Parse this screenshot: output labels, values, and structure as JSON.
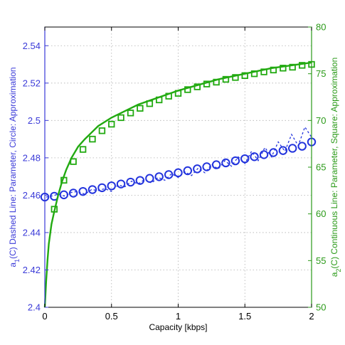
{
  "chart_data": {
    "type": "line",
    "xlabel": "Capacity [kbps]",
    "ylabel_left_parts": [
      "a",
      "1",
      "(C) Dashed Line: Parameter, Circle: Approximation"
    ],
    "ylabel_right_parts": [
      "a",
      "2",
      "(C) Continuous Line: Parameter, Square: Approximation"
    ],
    "xlim": [
      0,
      2
    ],
    "ylim_left": [
      2.4,
      2.55
    ],
    "ylim_right": [
      50,
      80
    ],
    "x_ticks": [
      "0",
      "0.5",
      "1",
      "1.5",
      "2"
    ],
    "y_left_ticks": [
      "2.4",
      "2.42",
      "2.44",
      "2.46",
      "2.48",
      "2.5",
      "2.52",
      "2.54"
    ],
    "y_right_ticks": [
      "50",
      "55",
      "60",
      "65",
      "70",
      "75",
      "80"
    ],
    "grid": true,
    "colors": {
      "left": "#2233dd",
      "right": "#22aa11",
      "axis_left": "#3a3ad8",
      "axis_right": "#2a9a18"
    },
    "series": [
      {
        "axis": "left",
        "style": "dashed",
        "x": [
          0.01,
          0.05,
          0.1,
          0.15,
          0.2,
          0.25,
          0.3,
          0.35,
          0.4,
          0.45,
          0.5,
          0.55,
          0.6,
          0.65,
          0.7,
          0.75,
          0.8,
          0.85,
          0.9,
          0.95,
          1.0,
          1.05,
          1.1,
          1.15,
          1.2,
          1.25,
          1.3,
          1.35,
          1.4,
          1.45,
          1.5,
          1.55,
          1.6,
          1.65,
          1.7,
          1.75,
          1.8,
          1.85,
          1.9,
          1.95,
          2.0
        ],
        "y": [
          2.459,
          2.4595,
          2.4605,
          2.4595,
          2.4615,
          2.462,
          2.4605,
          2.463,
          2.4625,
          2.4635,
          2.462,
          2.4655,
          2.4645,
          2.4675,
          2.466,
          2.4685,
          2.4665,
          2.4695,
          2.468,
          2.4715,
          2.4695,
          2.4725,
          2.4705,
          2.4745,
          2.472,
          2.4765,
          2.474,
          2.4785,
          2.4755,
          2.4805,
          2.477,
          2.4835,
          2.4785,
          2.4855,
          2.4805,
          2.4885,
          2.4835,
          2.4925,
          2.4865,
          2.4965,
          2.491
        ]
      },
      {
        "axis": "left",
        "style": "circle",
        "x": [
          0.0,
          0.071,
          0.143,
          0.214,
          0.286,
          0.357,
          0.429,
          0.5,
          0.571,
          0.643,
          0.714,
          0.786,
          0.857,
          0.929,
          1.0,
          1.071,
          1.143,
          1.214,
          1.286,
          1.357,
          1.429,
          1.5,
          1.571,
          1.643,
          1.714,
          1.786,
          1.857,
          1.929,
          2.0
        ],
        "y": [
          2.459,
          2.4594,
          2.4602,
          2.4611,
          2.462,
          2.463,
          2.464,
          2.465,
          2.466,
          2.467,
          2.4679,
          2.469,
          2.4699,
          2.471,
          2.472,
          2.4731,
          2.4741,
          2.4752,
          2.4763,
          2.4773,
          2.4784,
          2.4795,
          2.4806,
          2.4817,
          2.4828,
          2.4839,
          2.4851,
          2.4862,
          2.4885
        ]
      },
      {
        "axis": "right",
        "style": "solid",
        "x": [
          0.0,
          0.01,
          0.02,
          0.03,
          0.05,
          0.07,
          0.1,
          0.13,
          0.16,
          0.2,
          0.25,
          0.3,
          0.4,
          0.5,
          0.6,
          0.7,
          0.8,
          0.9,
          1.0,
          1.1,
          1.2,
          1.3,
          1.4,
          1.5,
          1.6,
          1.7,
          1.8,
          1.9,
          2.0
        ],
        "y": [
          50.0,
          52.8,
          55.0,
          56.8,
          58.9,
          60.2,
          62.0,
          63.5,
          64.7,
          66.0,
          67.2,
          68.0,
          69.4,
          70.3,
          71.0,
          71.7,
          72.2,
          72.7,
          73.2,
          73.6,
          74.0,
          74.4,
          74.7,
          75.0,
          75.3,
          75.6,
          75.8,
          76.0,
          76.2
        ]
      },
      {
        "axis": "right",
        "style": "square",
        "x": [
          0.071,
          0.143,
          0.214,
          0.286,
          0.357,
          0.429,
          0.5,
          0.571,
          0.643,
          0.714,
          0.786,
          0.857,
          0.929,
          1.0,
          1.071,
          1.143,
          1.214,
          1.286,
          1.357,
          1.429,
          1.5,
          1.571,
          1.643,
          1.714,
          1.786,
          1.857,
          1.929,
          2.0
        ],
        "y": [
          60.5,
          63.6,
          65.6,
          66.9,
          68.0,
          68.9,
          69.6,
          70.3,
          70.8,
          71.3,
          71.8,
          72.2,
          72.6,
          72.9,
          73.3,
          73.6,
          73.9,
          74.1,
          74.4,
          74.6,
          74.8,
          75.0,
          75.2,
          75.4,
          75.6,
          75.7,
          75.9,
          76.0
        ]
      }
    ]
  }
}
